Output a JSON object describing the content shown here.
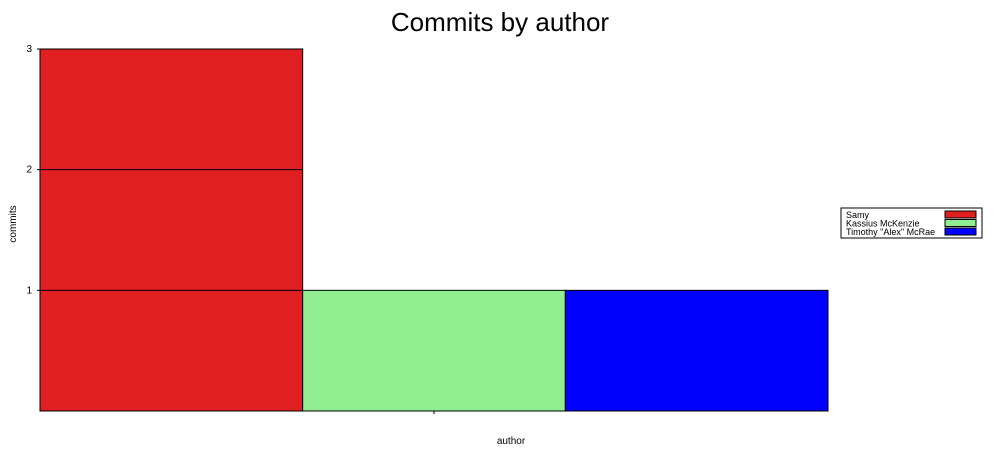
{
  "chart_data": {
    "type": "bar",
    "title": "Commits by author",
    "xlabel": "author",
    "ylabel": "commits",
    "ylim": [
      0,
      3
    ],
    "yticks": [
      1,
      2,
      3
    ],
    "grid": false,
    "legend_position": "right",
    "series": [
      {
        "name": "Samy",
        "values": [
          3
        ],
        "color": "#e02020"
      },
      {
        "name": "Kassius McKenzie",
        "values": [
          1
        ],
        "color": "#90ee90"
      },
      {
        "name": "Timothy \"Alex\" McRae",
        "values": [
          1
        ],
        "color": "#0000ff"
      }
    ]
  }
}
